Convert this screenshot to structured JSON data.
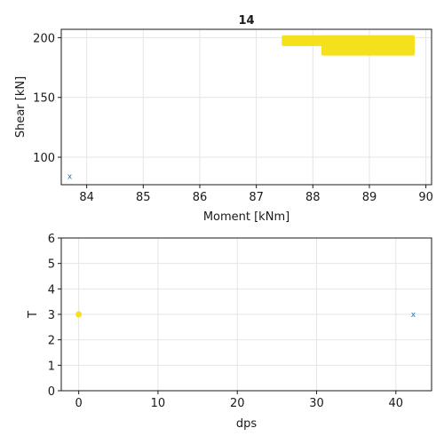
{
  "chart_data": [
    {
      "type": "scatter",
      "title": "14",
      "xlabel": "Moment [kNm]",
      "ylabel": "Shear [kN]",
      "xlim": [
        83.55,
        90.1
      ],
      "ylim": [
        77,
        207
      ],
      "xticks": [
        84,
        85,
        86,
        87,
        88,
        89,
        90
      ],
      "yticks": [
        100,
        150,
        200
      ],
      "grid": true,
      "series": [
        {
          "marker": "rect",
          "color": "#f5e01c",
          "rects": [
            {
              "x0": 87.45,
              "x1": 89.8,
              "y0": 193,
              "y1": 202
            },
            {
              "x0": 88.15,
              "x1": 89.8,
              "y0": 185,
              "y1": 202
            }
          ]
        },
        {
          "marker": "x",
          "color": "#1f77b4",
          "points": [
            {
              "x": 83.7,
              "y": 84
            }
          ]
        }
      ]
    },
    {
      "type": "scatter",
      "title": "",
      "xlabel": "dps",
      "ylabel": "T",
      "xlim": [
        -2.2,
        44.5
      ],
      "ylim": [
        0,
        6
      ],
      "xticks": [
        0,
        10,
        20,
        30,
        40
      ],
      "yticks": [
        0,
        1,
        2,
        3,
        4,
        5,
        6
      ],
      "grid": true,
      "series": [
        {
          "marker": "circle",
          "color": "#f5e01c",
          "points": [
            {
              "x": 0,
              "y": 3
            }
          ]
        },
        {
          "marker": "x",
          "color": "#1f77b4",
          "points": [
            {
              "x": 42.2,
              "y": 3
            }
          ]
        }
      ]
    }
  ]
}
